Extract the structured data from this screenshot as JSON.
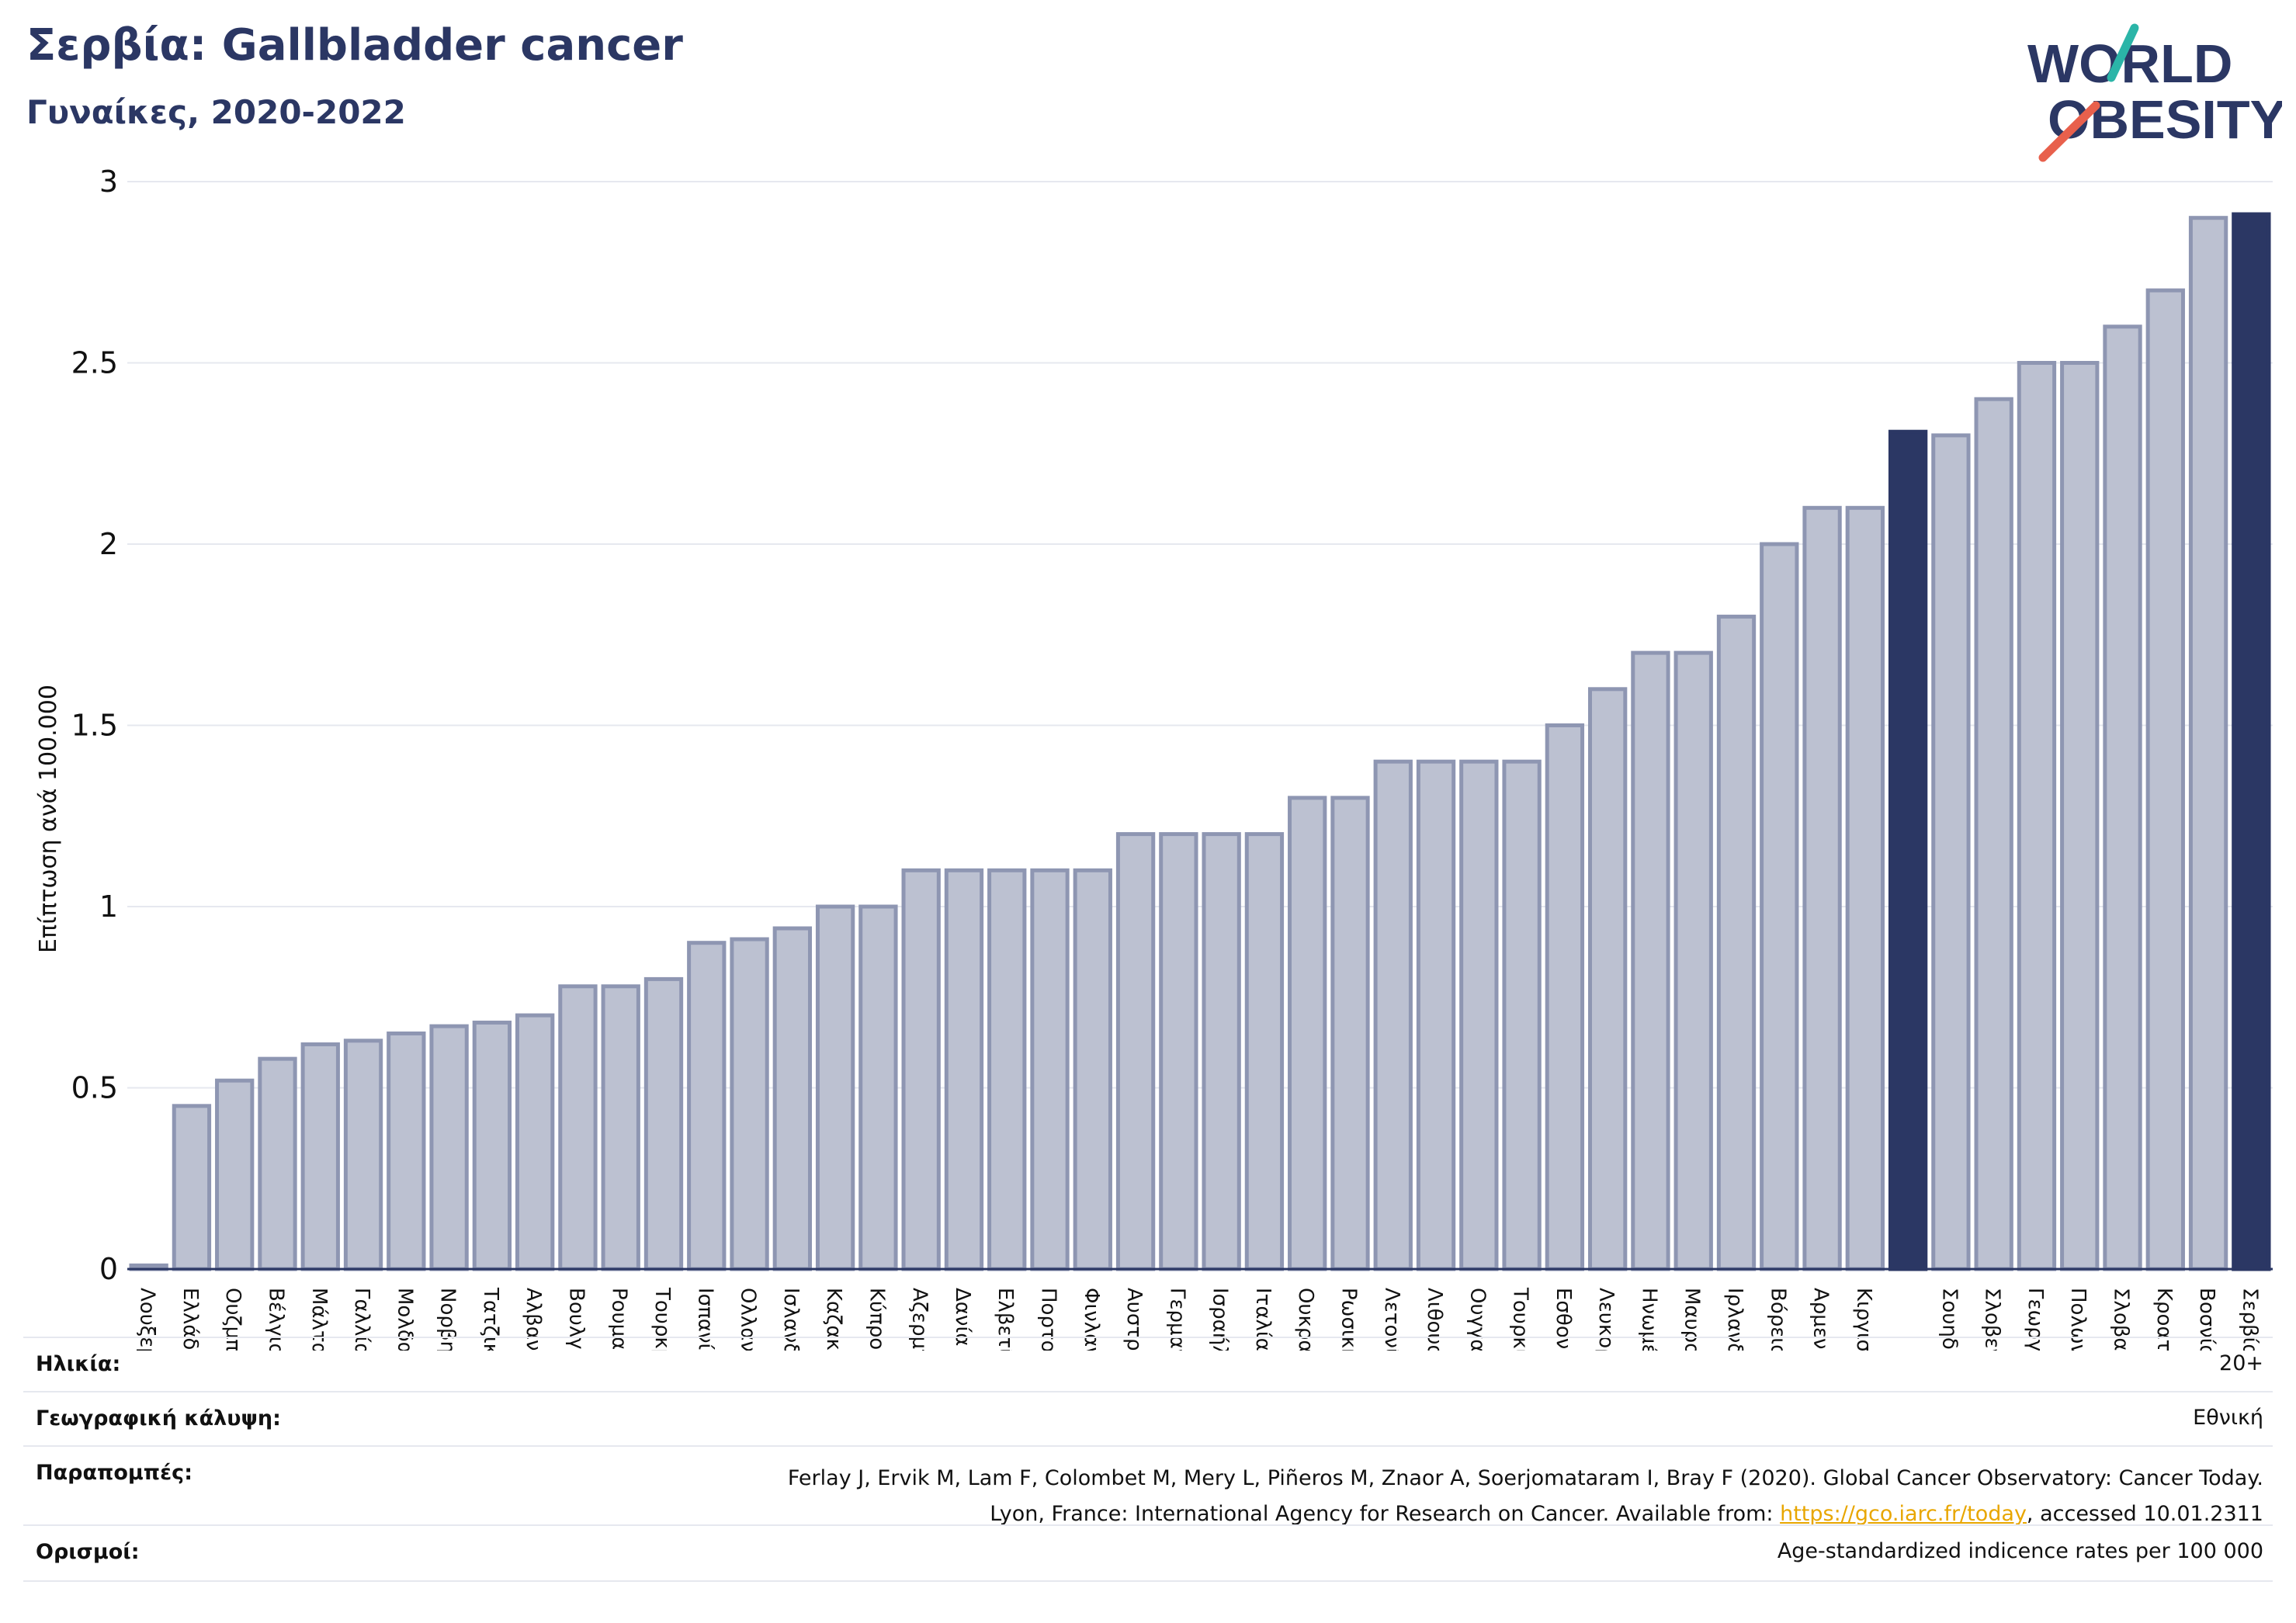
{
  "header": {
    "title": "Σερβία: Gallbladder cancer",
    "subtitle": "Γυναίκες, 2020-2022"
  },
  "logo": {
    "line1": "WORLD",
    "line2": "OBESITY",
    "accent_teal": "#2bb5a8",
    "accent_red": "#e8604c",
    "text_color": "#2b3764"
  },
  "chart_data": {
    "type": "bar",
    "ylabel": "Επίπτωση ανά 100.000",
    "ylim": [
      0,
      3
    ],
    "yticks": [
      "0",
      "0.5",
      "1",
      "1.5",
      "2",
      "2.5",
      "3"
    ],
    "grid": true,
    "categories": [
      "Λουξεμβούργο",
      "Ελλάδα",
      "Ουζμπεκιστάν",
      "Βέλγιο",
      "Μάλτα",
      "Γαλλία",
      "Μολδαβία",
      "Νορβηγία",
      "Τατζικιστάν",
      "Αλβανία",
      "Βουλγαρία",
      "Ρουμανία",
      "Τουρκμενιστάν",
      "Ισπανία",
      "Ολλανδία",
      "Ισλανδία",
      "Καζακστάν",
      "Κύπρος",
      "Αζερμπαϊτζάν",
      "Δανία",
      "Ελβετία",
      "Πορτογαλία",
      "Φινλανδία",
      "Αυστρία",
      "Γερμανία",
      "Ισραήλ",
      "Ιταλία",
      "Ουκρανία",
      "Ρωσική Ομοσπονδία",
      "Λετονία",
      "Λιθουανία",
      "Ουγγαρία",
      "Τουρκία",
      "Εσθονία",
      "Λευκορωσία",
      "Ηνωμένο Βασίλειο",
      "Μαυροβούνιο",
      "Ιρλανδία",
      "Βόρεια Μακεδονία",
      "Αρμενία",
      "Κιργιστάν",
      "",
      "Σουηδία",
      "Σλοβενία",
      "Γεωργία",
      "Πολωνία",
      "Σλοβακία",
      "Κροατία",
      "Βοσνία και Ερζεγοβίνη",
      "Σερβία"
    ],
    "values": [
      0.01,
      0.45,
      0.52,
      0.58,
      0.62,
      0.63,
      0.65,
      0.67,
      0.68,
      0.7,
      0.78,
      0.78,
      0.8,
      0.9,
      0.91,
      0.94,
      1.0,
      1.0,
      1.1,
      1.1,
      1.1,
      1.1,
      1.1,
      1.2,
      1.2,
      1.2,
      1.2,
      1.3,
      1.3,
      1.4,
      1.4,
      1.4,
      1.4,
      1.5,
      1.6,
      1.7,
      1.7,
      1.8,
      2.0,
      2.1,
      2.1,
      2.31,
      2.3,
      2.4,
      2.5,
      2.5,
      2.6,
      2.7,
      2.9,
      2.91
    ],
    "highlight": [
      41,
      49
    ],
    "colors": {
      "bar": "#bcc1d1",
      "bar_edge": "#8e96b2",
      "highlight": "#2b3764",
      "grid": "#e6e8ef"
    }
  },
  "footer": {
    "age": {
      "label": "Ηλικία:",
      "value": "20+"
    },
    "coverage": {
      "label": "Γεωγραφική κάλυψη:",
      "value": "Εθνική"
    },
    "references": {
      "label": "Παραπομπές:",
      "line1": "Ferlay J, Ervik M, Lam F, Colombet M, Mery L, Piñeros M, Znaor A, Soerjomataram I, Bray F (2020). Global Cancer Observatory: Cancer Today.",
      "line2_pre": "Lyon, France: International Agency for Research on Cancer. Available from: ",
      "link": "https://gco.iarc.fr/today",
      "line2_post": ", accessed 10.01.2311"
    },
    "definitions": {
      "label": "Ορισμοί:",
      "value": "Age-standardized indicence rates per 100 000"
    }
  }
}
